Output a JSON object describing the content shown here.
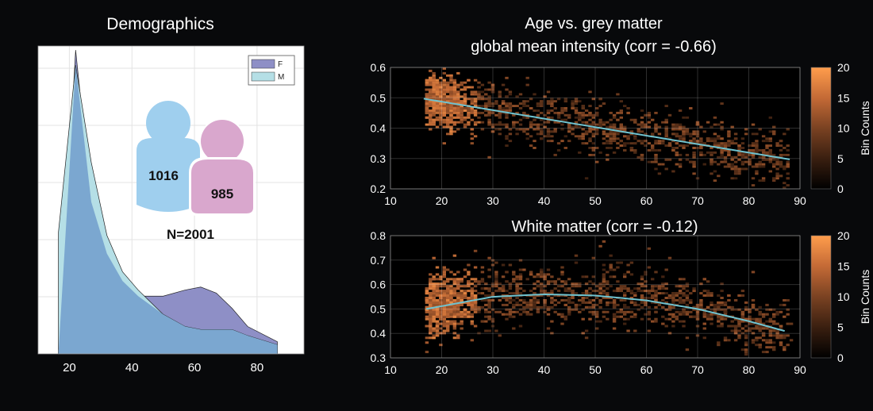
{
  "colors": {
    "background": "#08090b",
    "female": "#8e8fc6",
    "male": "#b5dfe6",
    "overlap": "#7ba7d0",
    "fit_line": "#6fc3d0",
    "male_icon": "#9fcfee",
    "female_icon": "#d9a7cd"
  },
  "chart_data": [
    {
      "type": "area",
      "title": "Demographics",
      "xticks": [
        "20",
        "40",
        "60",
        "80"
      ],
      "xlim": [
        10,
        95
      ],
      "ylim": [
        0,
        100
      ],
      "legend": {
        "placement": "top-right",
        "entries": [
          "F",
          "M"
        ]
      },
      "series": [
        {
          "name": "F",
          "x": [
            16.5,
            22,
            27,
            32,
            37,
            42,
            50,
            57,
            62,
            67,
            72,
            77,
            86.5
          ],
          "y": [
            0,
            100,
            50,
            33,
            24,
            19,
            19,
            21,
            22,
            20,
            15,
            9,
            4
          ]
        },
        {
          "name": "M",
          "x": [
            16.5,
            22,
            27,
            32,
            37,
            42,
            50,
            57,
            62,
            67,
            72,
            77,
            86.5
          ],
          "y": [
            40,
            95,
            63,
            39,
            27,
            21,
            13,
            9,
            8,
            8,
            8,
            6,
            3
          ]
        }
      ],
      "annotations": {
        "male_count": "1016",
        "female_count": "985",
        "total": "N=2001"
      },
      "grid": true
    },
    {
      "type": "heatmap",
      "title_lines": [
        "Age vs. grey matter",
        "global mean intensity  (corr = -0.66)"
      ],
      "xlim": [
        10,
        90
      ],
      "ylim": [
        0.2,
        0.6
      ],
      "xticks": [
        "10",
        "20",
        "30",
        "40",
        "50",
        "60",
        "70",
        "80",
        "90"
      ],
      "yticks": [
        "0.2",
        "0.3",
        "0.4",
        "0.5",
        "0.6"
      ],
      "fit": {
        "type": "linear",
        "x": [
          16.5,
          88
        ],
        "y": [
          0.497,
          0.297
        ]
      },
      "colorbar": {
        "label": "Bin Counts",
        "ticks": [
          "0",
          "5",
          "10",
          "15",
          "20"
        ],
        "max": 20
      },
      "grid": true
    },
    {
      "type": "heatmap",
      "title": "White matter (corr = -0.12)",
      "xlim": [
        10,
        90
      ],
      "ylim": [
        0.3,
        0.8
      ],
      "xticks": [
        "10",
        "20",
        "30",
        "40",
        "50",
        "60",
        "70",
        "80",
        "90"
      ],
      "yticks": [
        "0.3",
        "0.4",
        "0.5",
        "0.6",
        "0.7",
        "0.8"
      ],
      "fit": {
        "type": "quadratic",
        "x": [
          17,
          30,
          40,
          50,
          60,
          70,
          80,
          87
        ],
        "y": [
          0.5,
          0.55,
          0.56,
          0.555,
          0.535,
          0.5,
          0.45,
          0.41
        ]
      },
      "colorbar": {
        "label": "Bin Counts",
        "ticks": [
          "0",
          "5",
          "10",
          "15",
          "20"
        ],
        "max": 20
      },
      "grid": true
    }
  ]
}
